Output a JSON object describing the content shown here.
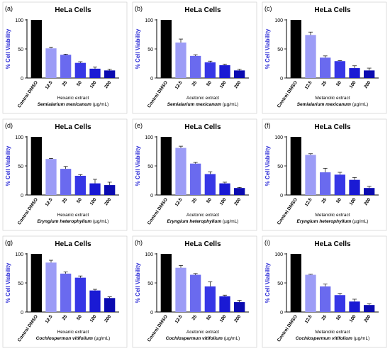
{
  "categories": [
    "Control DMSO",
    "12.5",
    "25",
    "50",
    "100",
    "200"
  ],
  "colors": {
    "bars": [
      "#000000",
      "#9c9cf6",
      "#6a6aef",
      "#3737e6",
      "#1a1ad4",
      "#0b0bb0"
    ],
    "axis_label": "#2b2bd6",
    "text": "#000000"
  },
  "chart_data": [
    {
      "type": "bar",
      "panel_label": "(a)",
      "title": "HeLa Cells",
      "ylabel": "% Cell Viability",
      "xlabel_line1": "Hexanic extract",
      "xlabel_line2": "Semialarium mexicanum",
      "xlabel_unit": " (µg/mL)",
      "ylim": [
        0,
        100
      ],
      "yticks": [
        0,
        50,
        100
      ],
      "values": [
        100,
        51,
        40,
        26,
        16,
        13
      ],
      "errors": [
        0,
        2,
        1,
        2,
        3,
        2
      ]
    },
    {
      "type": "bar",
      "panel_label": "(b)",
      "title": "HeLa Cells",
      "ylabel": "% Cell Viability",
      "xlabel_line1": "Acetonic extract",
      "xlabel_line2": "Semialarium mexicanum",
      "xlabel_unit": " (µg/mL)",
      "ylim": [
        0,
        100
      ],
      "yticks": [
        0,
        50,
        100
      ],
      "values": [
        100,
        61,
        38,
        27,
        22,
        13
      ],
      "errors": [
        0,
        6,
        2,
        2,
        2,
        2
      ]
    },
    {
      "type": "bar",
      "panel_label": "(c)",
      "title": "HeLa Cells",
      "ylabel": "% Cell Viability",
      "xlabel_line1": "Metanolic extract",
      "xlabel_line2": "Semialarium mexicanum",
      "xlabel_unit": " (µg/mL)",
      "ylim": [
        0,
        100
      ],
      "yticks": [
        0,
        50,
        100
      ],
      "values": [
        100,
        74,
        35,
        29,
        17,
        13
      ],
      "errors": [
        0,
        5,
        3,
        1,
        4,
        4
      ]
    },
    {
      "type": "bar",
      "panel_label": "(d)",
      "title": "HeLa Cells",
      "ylabel": "% Cell Viability",
      "xlabel_line1": "Hexanic extract",
      "xlabel_line2": "Eryngium heterophyllum",
      "xlabel_unit": " (µg/mL)",
      "ylim": [
        0,
        100
      ],
      "yticks": [
        0,
        50,
        100
      ],
      "values": [
        100,
        62,
        45,
        33,
        20,
        17
      ],
      "errors": [
        0,
        1,
        4,
        2,
        7,
        5
      ]
    },
    {
      "type": "bar",
      "panel_label": "(e)",
      "title": "HeLa Cells",
      "ylabel": "% Cell Viability",
      "xlabel_line1": "Acetonic extract",
      "xlabel_line2": "Eryngium heterophyllum",
      "xlabel_unit": " (µg/mL)",
      "ylim": [
        0,
        100
      ],
      "yticks": [
        0,
        50,
        100
      ],
      "values": [
        100,
        81,
        54,
        36,
        20,
        12
      ],
      "errors": [
        0,
        3,
        2,
        4,
        2,
        1
      ]
    },
    {
      "type": "bar",
      "panel_label": "(f)",
      "title": "HeLa Cells",
      "ylabel": "% Cell Viability",
      "xlabel_line1": "Metanolic extract",
      "xlabel_line2": "Eryngium heterophyllum",
      "xlabel_unit": " (µg/mL)",
      "ylim": [
        0,
        100
      ],
      "yticks": [
        0,
        50,
        100
      ],
      "values": [
        100,
        69,
        39,
        35,
        26,
        12
      ],
      "errors": [
        0,
        2,
        7,
        4,
        4,
        3
      ]
    },
    {
      "type": "bar",
      "panel_label": "(g)",
      "title": "HeLa Cells",
      "ylabel": "% Cell Viability",
      "xlabel_line1": "Hexanic extract",
      "xlabel_line2": "Cochlospermun vitifolium",
      "xlabel_unit": " (µg/mL)",
      "ylim": [
        0,
        100
      ],
      "yticks": [
        0,
        50,
        100
      ],
      "values": [
        100,
        85,
        66,
        59,
        37,
        24
      ],
      "errors": [
        0,
        4,
        3,
        3,
        2,
        2
      ]
    },
    {
      "type": "bar",
      "panel_label": "(h)",
      "title": "HeLa Cells",
      "ylabel": "% Cell Viability",
      "xlabel_line1": "Acetonic extract",
      "xlabel_line2": "Cochlospermun vitifolium",
      "xlabel_unit": " (µg/mL)",
      "ylim": [
        0,
        100
      ],
      "yticks": [
        0,
        50,
        100
      ],
      "values": [
        100,
        76,
        64,
        44,
        27,
        17
      ],
      "errors": [
        0,
        4,
        2,
        8,
        2,
        3
      ]
    },
    {
      "type": "bar",
      "panel_label": "(i)",
      "title": "HeLa Cells",
      "ylabel": "% Cell Viability",
      "xlabel_line1": "Metanolic  extract",
      "xlabel_line2": "Cochlospermun vitifolium",
      "xlabel_unit": " (µg/mL)",
      "ylim": [
        0,
        100
      ],
      "yticks": [
        0,
        50,
        100
      ],
      "values": [
        100,
        64,
        44,
        29,
        18,
        12
      ],
      "errors": [
        0,
        1,
        4,
        3,
        4,
        2
      ]
    }
  ]
}
